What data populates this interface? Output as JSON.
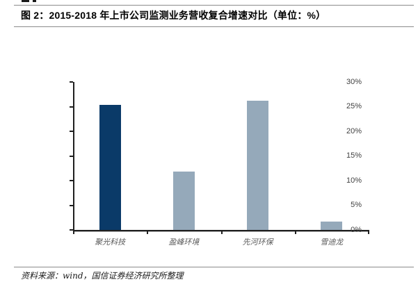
{
  "page": {
    "figure_title": "图 2：2015-2018 年上市公司监测业务营收复合增速对比（单位：%）",
    "source_note": "资料来源：wind，国信证券经济研究所整理"
  },
  "chart_data": {
    "type": "bar",
    "title": "2015-2018 年上市公司监测业务营收复合增速对比",
    "unit": "%",
    "categories": [
      "聚光科技",
      "盈峰环境",
      "先河环保",
      "雪迪龙"
    ],
    "values": [
      25.3,
      11.9,
      26.2,
      1.7
    ],
    "bar_colors": [
      "#0a3a68",
      "#95a9ba",
      "#95a9ba",
      "#95a9ba"
    ],
    "highlight_color": "#0a3a68",
    "base_color": "#95a9ba",
    "ylim": [
      0,
      30
    ],
    "yticks": [
      0,
      5,
      10,
      15,
      20,
      25,
      30
    ],
    "ytick_labels": [
      "0%",
      "5%",
      "10%",
      "15%",
      "20%",
      "25%",
      "30%"
    ],
    "xlabel": "",
    "ylabel": "",
    "grid": false,
    "legend": "none"
  }
}
